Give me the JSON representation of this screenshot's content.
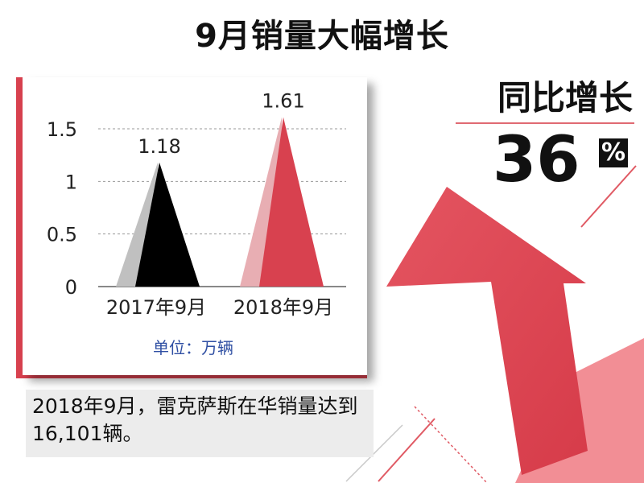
{
  "header": {
    "title": "9月销量大幅增长"
  },
  "yoy": {
    "label": "同比增长",
    "value": "36",
    "unit": "%"
  },
  "chart_data": {
    "type": "bar",
    "categories": [
      "2017年9月",
      "2018年9月"
    ],
    "values": [
      1.18,
      1.61
    ],
    "data_labels": [
      "1.18",
      "1.61"
    ],
    "y_ticks": [
      "0",
      "0.5",
      "1",
      "1.5"
    ],
    "ylim": [
      0,
      1.6
    ],
    "grid": true,
    "unit": "单位：万辆",
    "colors": {
      "bar1_light": "#c0c0c0",
      "bar1_dark": "#000000",
      "bar2_light": "#e8aeb3",
      "bar2_dark": "#d8414f"
    }
  },
  "caption": {
    "text": "2018年9月，雷克萨斯在华销量达到16,101辆。"
  },
  "colors": {
    "accent": "#d8414f",
    "arrow": "#e0505c"
  }
}
